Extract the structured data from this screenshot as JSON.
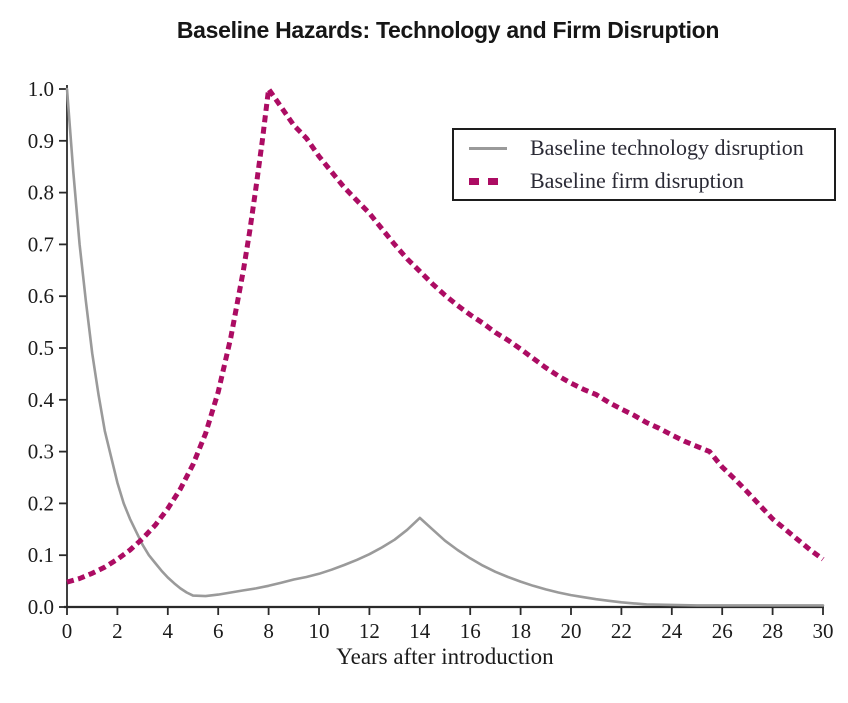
{
  "chart_data": {
    "type": "line",
    "title": "Baseline Hazards: Technology and Firm Disruption",
    "xlabel": "Years after introduction",
    "ylabel": "",
    "xlim": [
      0,
      30
    ],
    "ylim": [
      0,
      1.0
    ],
    "x_ticks": [
      0,
      2,
      4,
      6,
      8,
      10,
      12,
      14,
      16,
      18,
      20,
      22,
      24,
      26,
      28,
      30
    ],
    "y_tick_labels": [
      "0.0",
      "0.1",
      "0.2",
      "0.3",
      "0.4",
      "0.5",
      "0.6",
      "0.7",
      "0.8",
      "0.9",
      "1.0"
    ],
    "grid": false,
    "legend_position": "top-right",
    "axis_color": "#2a2a2a",
    "series": [
      {
        "id": "technology",
        "name": "Baseline technology disruption",
        "color": "#9a9a9a",
        "style": "solid",
        "width": 2.6,
        "points": [
          [
            0,
            1.0
          ],
          [
            0.25,
            0.84
          ],
          [
            0.5,
            0.7
          ],
          [
            0.75,
            0.59
          ],
          [
            1,
            0.49
          ],
          [
            1.25,
            0.41
          ],
          [
            1.5,
            0.34
          ],
          [
            1.75,
            0.29
          ],
          [
            2,
            0.24
          ],
          [
            2.25,
            0.2
          ],
          [
            2.5,
            0.17
          ],
          [
            2.75,
            0.145
          ],
          [
            3,
            0.12
          ],
          [
            3.25,
            0.1
          ],
          [
            3.5,
            0.085
          ],
          [
            3.75,
            0.07
          ],
          [
            4,
            0.057
          ],
          [
            4.25,
            0.046
          ],
          [
            4.5,
            0.036
          ],
          [
            4.75,
            0.028
          ],
          [
            5,
            0.022
          ],
          [
            5.5,
            0.021
          ],
          [
            6,
            0.024
          ],
          [
            6.5,
            0.028
          ],
          [
            7,
            0.032
          ],
          [
            7.5,
            0.036
          ],
          [
            8,
            0.041
          ],
          [
            8.5,
            0.047
          ],
          [
            9,
            0.053
          ],
          [
            9.5,
            0.058
          ],
          [
            10,
            0.064
          ],
          [
            10.5,
            0.072
          ],
          [
            11,
            0.081
          ],
          [
            11.5,
            0.091
          ],
          [
            12,
            0.102
          ],
          [
            12.5,
            0.115
          ],
          [
            13,
            0.13
          ],
          [
            13.5,
            0.149
          ],
          [
            14,
            0.172
          ],
          [
            14.5,
            0.15
          ],
          [
            15,
            0.128
          ],
          [
            15.5,
            0.11
          ],
          [
            16,
            0.094
          ],
          [
            16.5,
            0.08
          ],
          [
            17,
            0.068
          ],
          [
            17.5,
            0.058
          ],
          [
            18,
            0.049
          ],
          [
            18.5,
            0.041
          ],
          [
            19,
            0.034
          ],
          [
            19.5,
            0.028
          ],
          [
            20,
            0.023
          ],
          [
            20.5,
            0.019
          ],
          [
            21,
            0.015
          ],
          [
            21.5,
            0.012
          ],
          [
            22,
            0.009
          ],
          [
            22.5,
            0.007
          ],
          [
            23,
            0.005
          ],
          [
            24,
            0.004
          ],
          [
            25,
            0.003
          ],
          [
            26,
            0.003
          ],
          [
            27,
            0.003
          ],
          [
            28,
            0.003
          ],
          [
            29,
            0.003
          ],
          [
            30,
            0.003
          ]
        ]
      },
      {
        "id": "firm",
        "name": "Baseline firm disruption",
        "color": "#ac0c63",
        "style": "dashed",
        "width": 5,
        "points": [
          [
            0,
            0.048
          ],
          [
            0.5,
            0.055
          ],
          [
            1,
            0.065
          ],
          [
            1.5,
            0.077
          ],
          [
            2,
            0.092
          ],
          [
            2.5,
            0.11
          ],
          [
            3,
            0.132
          ],
          [
            3.5,
            0.158
          ],
          [
            4,
            0.19
          ],
          [
            4.5,
            0.228
          ],
          [
            5,
            0.275
          ],
          [
            5.5,
            0.335
          ],
          [
            6,
            0.415
          ],
          [
            6.5,
            0.52
          ],
          [
            7,
            0.65
          ],
          [
            7.25,
            0.725
          ],
          [
            7.5,
            0.81
          ],
          [
            7.75,
            0.9
          ],
          [
            8,
            1.0
          ],
          [
            8.5,
            0.965
          ],
          [
            9,
            0.93
          ],
          [
            9.5,
            0.905
          ],
          [
            10,
            0.87
          ],
          [
            10.5,
            0.84
          ],
          [
            11,
            0.81
          ],
          [
            11.5,
            0.785
          ],
          [
            12,
            0.76
          ],
          [
            12.5,
            0.73
          ],
          [
            13,
            0.7
          ],
          [
            13.5,
            0.672
          ],
          [
            14,
            0.648
          ],
          [
            14.5,
            0.624
          ],
          [
            15,
            0.602
          ],
          [
            15.5,
            0.582
          ],
          [
            16,
            0.564
          ],
          [
            16.5,
            0.548
          ],
          [
            17,
            0.53
          ],
          [
            17.5,
            0.515
          ],
          [
            18,
            0.498
          ],
          [
            18.5,
            0.48
          ],
          [
            19,
            0.462
          ],
          [
            19.5,
            0.446
          ],
          [
            20,
            0.432
          ],
          [
            20.5,
            0.42
          ],
          [
            21,
            0.41
          ],
          [
            21.5,
            0.395
          ],
          [
            22,
            0.382
          ],
          [
            22.5,
            0.37
          ],
          [
            23,
            0.356
          ],
          [
            23.5,
            0.345
          ],
          [
            24,
            0.332
          ],
          [
            24.5,
            0.32
          ],
          [
            25,
            0.31
          ],
          [
            25.5,
            0.3
          ],
          [
            26,
            0.27
          ],
          [
            26.5,
            0.247
          ],
          [
            27,
            0.222
          ],
          [
            27.5,
            0.196
          ],
          [
            28,
            0.17
          ],
          [
            28.5,
            0.15
          ],
          [
            29,
            0.13
          ],
          [
            29.5,
            0.11
          ],
          [
            30,
            0.092
          ]
        ]
      }
    ]
  },
  "legend": {
    "items": [
      {
        "label": "Baseline technology disruption"
      },
      {
        "label": "Baseline firm disruption"
      }
    ]
  }
}
